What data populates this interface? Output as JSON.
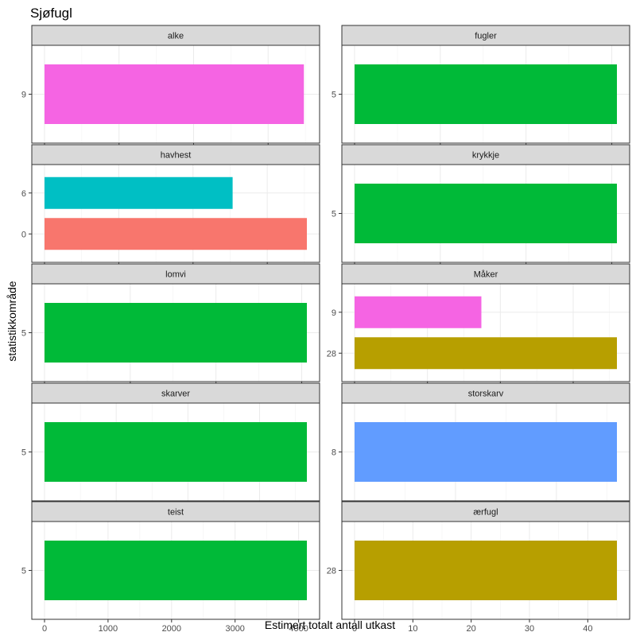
{
  "chart_data": {
    "type": "bar",
    "orientation": "horizontal",
    "title": "Sjøfugl",
    "xlabel": "Estimert totalt antall utkast",
    "ylabel": "statistikkområde",
    "grid": true,
    "legend": "none",
    "facets": [
      {
        "label": "alke",
        "xlim": [
          0,
          88
        ],
        "xticks": [
          0,
          25,
          50,
          75
        ],
        "bars": [
          {
            "category": "9",
            "value": 87,
            "color": "#F564E3"
          }
        ]
      },
      {
        "label": "fugler",
        "xlim": [
          0,
          153
        ],
        "xticks": [
          0,
          50,
          100,
          150
        ],
        "bars": [
          {
            "category": "5",
            "value": 153,
            "color": "#00BA38"
          }
        ]
      },
      {
        "label": "havhest",
        "xlim": [
          0,
          106
        ],
        "xticks": [
          0,
          30,
          60,
          90
        ],
        "bars": [
          {
            "category": "6",
            "value": 76,
            "color": "#00BFC4"
          },
          {
            "category": "0",
            "value": 106,
            "color": "#F8766D"
          }
        ]
      },
      {
        "label": "krykkje",
        "xlim": [
          0,
          153
        ],
        "xticks": [
          0,
          50,
          100,
          150
        ],
        "bars": [
          {
            "category": "5",
            "value": 153,
            "color": "#00BA38"
          }
        ]
      },
      {
        "label": "lomvi",
        "xlim": [
          0,
          153
        ],
        "xticks": [
          0,
          50,
          100,
          150
        ],
        "bars": [
          {
            "category": "5",
            "value": 153,
            "color": "#00BA38"
          }
        ]
      },
      {
        "label": "Måker",
        "xlim": [
          0,
          180
        ],
        "xticks": [
          0,
          50,
          100,
          150
        ],
        "bars": [
          {
            "category": "9",
            "value": 87,
            "color": "#F564E3"
          },
          {
            "category": "28",
            "value": 180,
            "color": "#B79F00"
          }
        ]
      },
      {
        "label": "skarver",
        "xlim": [
          0,
          1830
        ],
        "xticks": [
          0,
          500,
          1000,
          1500
        ],
        "bars": [
          {
            "category": "5",
            "value": 1830,
            "color": "#00BA38"
          }
        ]
      },
      {
        "label": "storskarv",
        "xlim": [
          0,
          26
        ],
        "xticks": [
          0,
          10,
          20
        ],
        "bars": [
          {
            "category": "8",
            "value": 26,
            "color": "#619CFF"
          }
        ]
      },
      {
        "label": "teist",
        "xlim": [
          0,
          4130
        ],
        "xticks": [
          0,
          1000,
          2000,
          3000,
          4000
        ],
        "bars": [
          {
            "category": "5",
            "value": 4130,
            "color": "#00BA38"
          }
        ]
      },
      {
        "label": "ærfugl",
        "xlim": [
          0,
          45
        ],
        "xticks": [
          0,
          10,
          20,
          30,
          40
        ],
        "bars": [
          {
            "category": "28",
            "value": 45,
            "color": "#B79F00"
          }
        ]
      }
    ]
  }
}
